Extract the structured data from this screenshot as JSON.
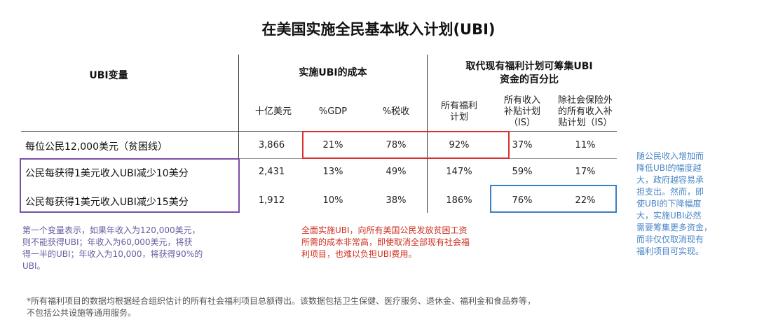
{
  "title": "在美国实施全民基本收入计划(UBI)",
  "headers": {
    "variable": "UBI变量",
    "cost": "实施UBI的成本",
    "replace_line1": "取代现有福利计划可筹集UBI",
    "replace_line2": "资金的百分比"
  },
  "subheaders": {
    "billion": "十亿美元",
    "gdp": "%GDP",
    "tax": "%税收",
    "all_welfare_1": "所有福利",
    "all_welfare_2": "计划",
    "is_1": "所有收入",
    "is_2": "补贴计划",
    "is_3": "（IS）",
    "ex_1": "除社会保险外",
    "ex_2": "的所有收入补",
    "ex_3": "贴计划（IS）"
  },
  "rows": [
    {
      "label": "每位公民12,000美元（贫困线）",
      "billion": "3,866",
      "gdp": "21%",
      "tax": "78%",
      "all": "92%",
      "is": "37%",
      "ex": "11%"
    },
    {
      "label": "公民每获得1美元收入UBI减少10美分",
      "billion": "2,431",
      "gdp": "13%",
      "tax": "49%",
      "all": "147%",
      "is": "59%",
      "ex": "17%"
    },
    {
      "label": "公民每获得1美元收入UBI减少15美分",
      "billion": "1,912",
      "gdp": "10%",
      "tax": "38%",
      "all": "186%",
      "is": "76%",
      "ex": "22%"
    }
  ],
  "notes": {
    "purple": [
      "第一个变量表示，如果年收入为120,000美元，",
      "则不能获得UBI；年收入为60,000美元，将获",
      "得一半的UBI；年收入为10,000，将获得90%的",
      "UBI。"
    ],
    "red": [
      "全面实施UBI，向所有美国公民发放贫困工资",
      "所需的成本非常高，即使取消全部现有社会福",
      "利项目，也难以负担UBI费用。"
    ],
    "blue": [
      "随公民收入增加而",
      "降低UBI的幅度越",
      "大，政府越容易承",
      "担支出。然而，即",
      "使UBI的下降幅度",
      "大，实施UBI必然",
      "需要筹集更多资金，",
      "而非仅仅取消现有",
      "福利项目可实现。"
    ],
    "footnote": [
      "*所有福利项目的数据均根据经合组织估计的所有社会福利项目总额得出。该数据包括卫生保健、医疗服务、退休金、福利金和食品券等，",
      "不包括公共设施等通用服务。"
    ]
  },
  "colors": {
    "purple": "#7b4ea8",
    "red": "#d9302c",
    "blue": "#3d80c2",
    "note_blue": "#4a86c8",
    "note_purple": "#6a5aa0",
    "note_red": "#d03020",
    "footnote": "#555555"
  }
}
